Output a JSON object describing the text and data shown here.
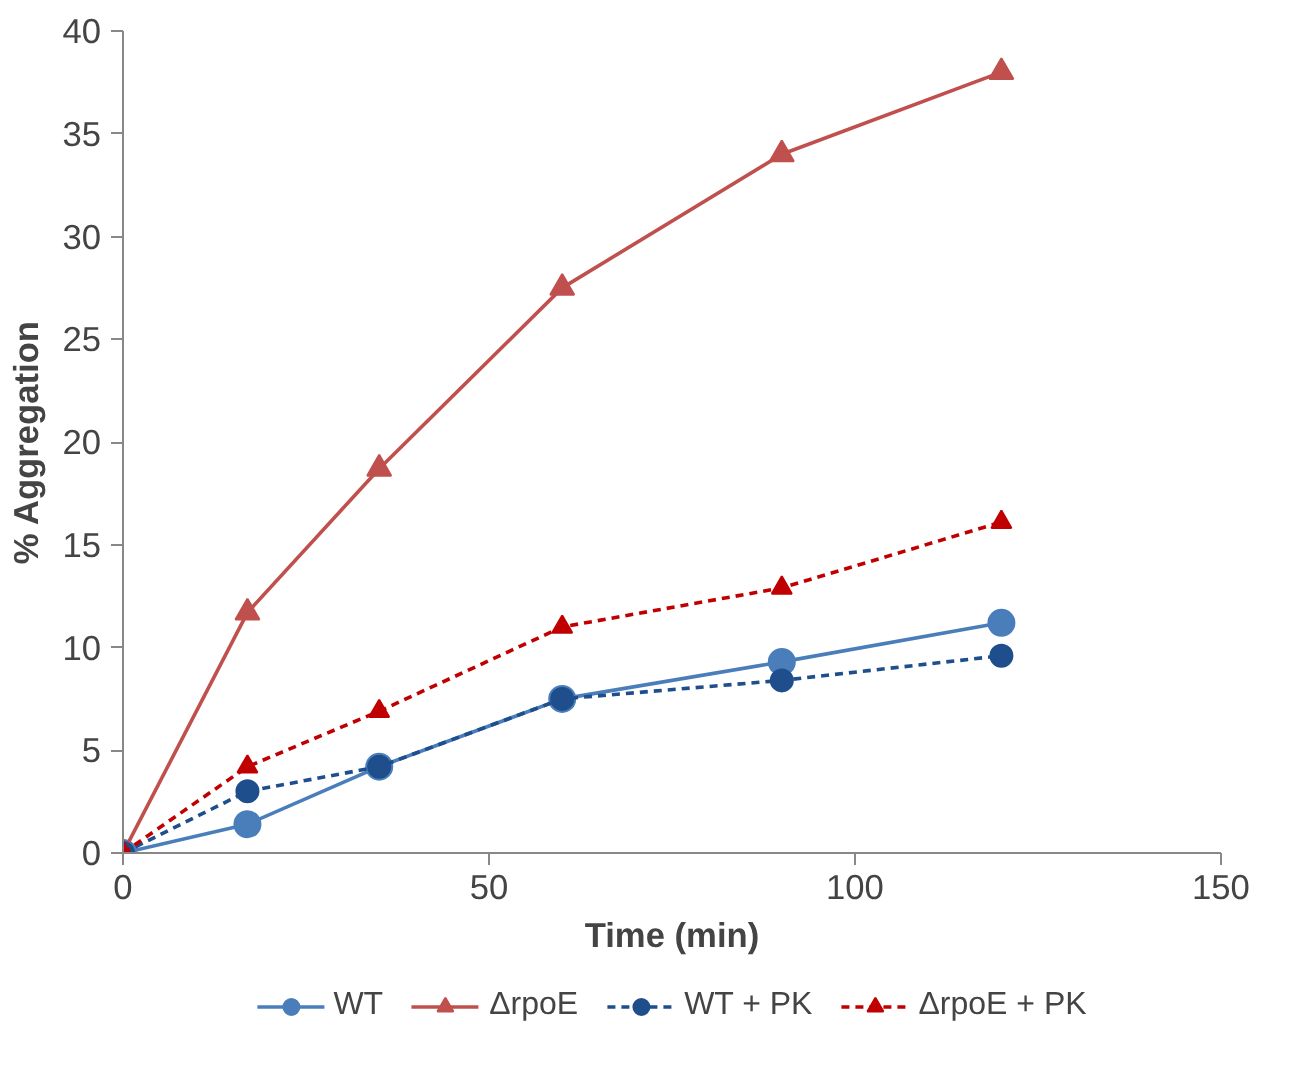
{
  "chart_data": {
    "type": "line",
    "xlabel": "Time (min)",
    "ylabel": "% Aggregation",
    "x": [
      0,
      17,
      35,
      60,
      90,
      120
    ],
    "xlim": [
      0,
      150
    ],
    "xticks": [
      0,
      50,
      100,
      150
    ],
    "ylim": [
      0,
      40
    ],
    "yticks": [
      0,
      5,
      10,
      15,
      20,
      25,
      30,
      35,
      40
    ],
    "grid": false,
    "legend": "bottom",
    "series": [
      {
        "name": "WT",
        "color": "#4a7ebb",
        "marker": "circle",
        "line_style": "solid",
        "values": [
          0,
          1.4,
          4.2,
          7.5,
          9.3,
          11.2
        ]
      },
      {
        "name": "ΔrpoE",
        "color": "#c0504d",
        "marker": "triangle",
        "line_style": "solid",
        "values": [
          0,
          11.7,
          18.7,
          27.5,
          34,
          38
        ]
      },
      {
        "name": "WT + PK",
        "color": "#1f4e8c",
        "marker": "circle",
        "line_style": "dashed",
        "values": [
          0,
          3.0,
          4.2,
          7.5,
          8.4,
          9.6
        ]
      },
      {
        "name": "ΔrpoE + PK",
        "color": "#c00000",
        "marker": "triangle",
        "line_style": "dashed",
        "values": [
          0,
          4.2,
          6.9,
          11.0,
          12.9,
          16.1
        ]
      }
    ]
  }
}
